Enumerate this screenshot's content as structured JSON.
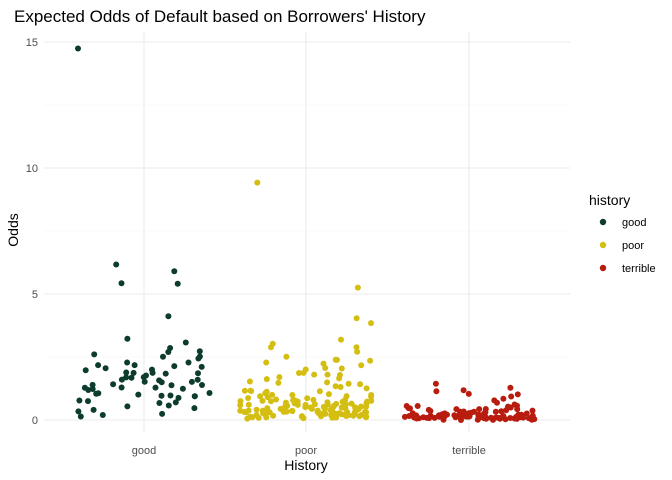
{
  "chart_data": {
    "type": "scatter",
    "title": "Expected Odds of Default based on Borrowers' History",
    "xlabel": "History",
    "ylabel": "Odds",
    "categories": [
      "good",
      "poor",
      "terrible"
    ],
    "y_ticks": [
      0,
      5,
      10,
      15
    ],
    "y_tick_labels": [
      "0",
      "5",
      "10",
      "15"
    ],
    "ylim": [
      -0.5,
      15.3
    ],
    "grid": true,
    "jitter": true,
    "legend": {
      "title": "history",
      "position": "right",
      "entries": [
        "good",
        "poor",
        "terrible"
      ]
    },
    "colors": {
      "good": "#0d3b2e",
      "poor": "#d4be12",
      "terrible": "#b81c0e"
    },
    "series": [
      {
        "name": "good",
        "x": "good",
        "values": [
          14.7,
          6.2,
          5.9,
          5.4,
          5.4,
          4.1,
          3.1,
          3.2,
          2.9,
          2.7,
          2.7,
          2.6,
          2.5,
          2.5,
          2.4,
          2.3,
          2.3,
          2.2,
          2.2,
          2.1,
          2.1,
          2.0,
          2.0,
          1.9,
          1.9,
          1.9,
          1.8,
          1.8,
          1.7,
          1.7,
          1.6,
          1.6,
          1.6,
          1.5,
          1.5,
          1.5,
          1.4,
          1.4,
          1.3,
          1.3,
          1.2,
          1.2,
          1.2,
          1.1,
          1.1,
          1.0,
          1.0,
          1.0,
          0.9,
          0.9,
          0.9,
          0.8,
          0.8,
          0.7,
          0.7,
          0.6,
          0.5,
          0.5,
          0.4,
          0.3,
          0.2,
          0.1,
          0.15,
          1.85,
          1.45,
          2.05,
          1.25,
          0.95,
          1.75,
          1.35
        ]
      },
      {
        "name": "poor",
        "x": "poor",
        "values": [
          9.4,
          5.3,
          4.0,
          3.8,
          3.2,
          3.0,
          2.9,
          2.9,
          2.7,
          2.5,
          2.4,
          2.4,
          2.3,
          2.3,
          2.2,
          2.2,
          2.1,
          2.0,
          2.0,
          1.9,
          1.9,
          1.8,
          1.8,
          1.8,
          1.7,
          1.7,
          1.6,
          1.5,
          1.5,
          1.5,
          1.4,
          1.4,
          1.3,
          1.3,
          1.3,
          1.2,
          1.2,
          1.2,
          1.1,
          1.1,
          1.1,
          1.0,
          1.0,
          1.0,
          1.0,
          0.9,
          0.9,
          0.9,
          0.9,
          0.9,
          0.8,
          0.8,
          0.8,
          0.8,
          0.8,
          0.8,
          0.7,
          0.7,
          0.7,
          0.7,
          0.7,
          0.7,
          0.7,
          0.6,
          0.6,
          0.6,
          0.6,
          0.6,
          0.6,
          0.6,
          0.6,
          0.5,
          0.5,
          0.5,
          0.5,
          0.5,
          0.5,
          0.5,
          0.5,
          0.5,
          0.5,
          0.4,
          0.4,
          0.4,
          0.4,
          0.4,
          0.4,
          0.4,
          0.4,
          0.4,
          0.4,
          0.4,
          0.3,
          0.3,
          0.3,
          0.3,
          0.3,
          0.3,
          0.3,
          0.3,
          0.3,
          0.3,
          0.3,
          0.3,
          0.2,
          0.2,
          0.2,
          0.2,
          0.2,
          0.2,
          0.2,
          0.2,
          0.2,
          0.2,
          0.2,
          0.2,
          0.15,
          0.15,
          0.15,
          0.15,
          0.15,
          0.15,
          0.15,
          0.15,
          0.1,
          0.1,
          0.1,
          0.1,
          0.1,
          0.1,
          0.1,
          0.1,
          0.45,
          0.55,
          0.65,
          0.35,
          0.25,
          0.45,
          0.55,
          0.65,
          0.35,
          0.25,
          0.45,
          0.55,
          0.35,
          0.25,
          0.75,
          0.85,
          0.95,
          0.45,
          0.35,
          0.25
        ]
      },
      {
        "name": "terrible",
        "x": "terrible",
        "values": [
          1.4,
          1.3,
          1.2,
          1.1,
          1.0,
          1.0,
          0.9,
          0.8,
          0.8,
          0.7,
          0.6,
          0.6,
          0.5,
          0.5,
          0.5,
          0.45,
          0.4,
          0.4,
          0.4,
          0.35,
          0.35,
          0.3,
          0.3,
          0.3,
          0.3,
          0.25,
          0.25,
          0.25,
          0.25,
          0.2,
          0.2,
          0.2,
          0.2,
          0.2,
          0.2,
          0.15,
          0.15,
          0.15,
          0.15,
          0.15,
          0.15,
          0.15,
          0.1,
          0.1,
          0.1,
          0.1,
          0.1,
          0.1,
          0.1,
          0.1,
          0.1,
          0.08,
          0.08,
          0.08,
          0.08,
          0.08,
          0.06,
          0.06,
          0.06,
          0.06,
          0.05,
          0.05,
          0.05,
          0.05,
          0.04,
          0.04,
          0.04,
          0.03,
          0.03,
          0.03,
          0.3,
          0.2,
          0.1,
          0.25,
          0.15,
          0.35,
          0.12,
          0.22,
          0.18,
          0.28,
          0.32,
          0.14,
          0.24,
          0.16,
          0.26,
          0.36,
          0.42,
          0.48,
          0.52,
          0.58,
          0.12,
          0.22,
          0.18,
          0.28,
          0.09,
          0.07,
          0.11,
          0.13,
          0.17,
          0.19
        ]
      }
    ]
  }
}
